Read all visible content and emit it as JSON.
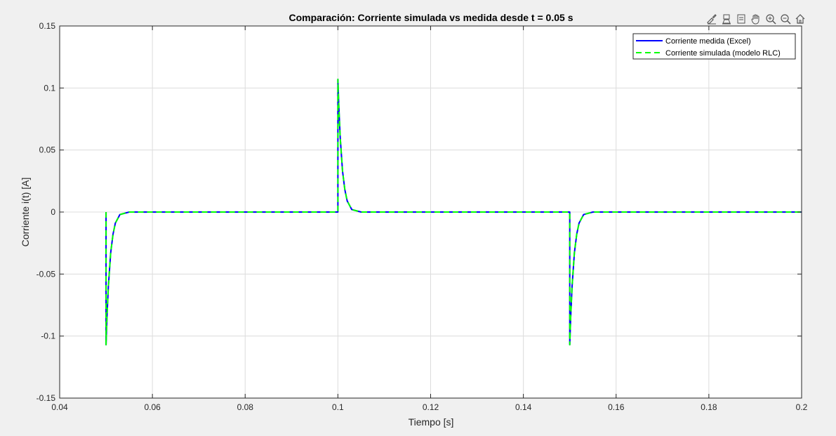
{
  "toolbar": {
    "icons": [
      "brush-icon",
      "data-tips-icon",
      "datatip-cursor-icon",
      "pan-hand-icon",
      "zoom-in-icon",
      "zoom-out-icon",
      "home-icon"
    ]
  },
  "chart_data": {
    "type": "line",
    "title": "Comparación: Corriente simulada vs medida desde t = 0.05 s",
    "xlabel": "Tiempo [s]",
    "ylabel": "Corriente i(t) [A]",
    "xlim": [
      0.04,
      0.2
    ],
    "ylim": [
      -0.15,
      0.15
    ],
    "xticks": [
      0.04,
      0.06,
      0.08,
      0.1,
      0.12,
      0.14,
      0.16,
      0.18,
      0.2
    ],
    "xtick_labels": [
      "0.04",
      "0.06",
      "0.08",
      "0.1",
      "0.12",
      "0.14",
      "0.16",
      "0.18",
      "0.2"
    ],
    "yticks": [
      -0.15,
      -0.1,
      -0.05,
      0,
      0.05,
      0.1,
      0.15
    ],
    "ytick_labels": [
      "-0.15",
      "-0.1",
      "-0.05",
      "0",
      "0.05",
      "0.1",
      "0.15"
    ],
    "grid": true,
    "legend_position": "top-right",
    "series": [
      {
        "name": "Corriente medida (Excel)",
        "color": "#0000ff",
        "style": "solid",
        "x": [
          0.05,
          0.05,
          0.0502,
          0.0505,
          0.051,
          0.0515,
          0.052,
          0.053,
          0.055,
          0.1,
          0.1,
          0.1002,
          0.1005,
          0.101,
          0.1015,
          0.102,
          0.103,
          0.105,
          0.15,
          0.15,
          0.1502,
          0.1505,
          0.151,
          0.1515,
          0.152,
          0.153,
          0.155,
          0.2
        ],
        "y": [
          0,
          -0.107,
          -0.085,
          -0.06,
          -0.033,
          -0.018,
          -0.009,
          -0.002,
          0,
          0,
          0.107,
          0.085,
          0.06,
          0.033,
          0.018,
          0.009,
          0.002,
          0,
          0,
          -0.107,
          -0.085,
          -0.06,
          -0.033,
          -0.018,
          -0.009,
          -0.002,
          0,
          0
        ]
      },
      {
        "name": "Corriente simulada (modelo RLC)",
        "color": "#00ff00",
        "style": "dashed",
        "x": [
          0.05,
          0.05,
          0.0502,
          0.0505,
          0.051,
          0.0515,
          0.052,
          0.053,
          0.055,
          0.1,
          0.1,
          0.1002,
          0.1005,
          0.101,
          0.1015,
          0.102,
          0.103,
          0.105,
          0.15,
          0.15,
          0.1502,
          0.1505,
          0.151,
          0.1515,
          0.152,
          0.153,
          0.155,
          0.2
        ],
        "y": [
          0,
          -0.107,
          -0.085,
          -0.06,
          -0.033,
          -0.018,
          -0.009,
          -0.002,
          0,
          0,
          0.107,
          0.085,
          0.06,
          0.033,
          0.018,
          0.009,
          0.002,
          0,
          0,
          -0.107,
          -0.085,
          -0.06,
          -0.033,
          -0.018,
          -0.009,
          -0.002,
          0,
          0
        ]
      }
    ]
  }
}
